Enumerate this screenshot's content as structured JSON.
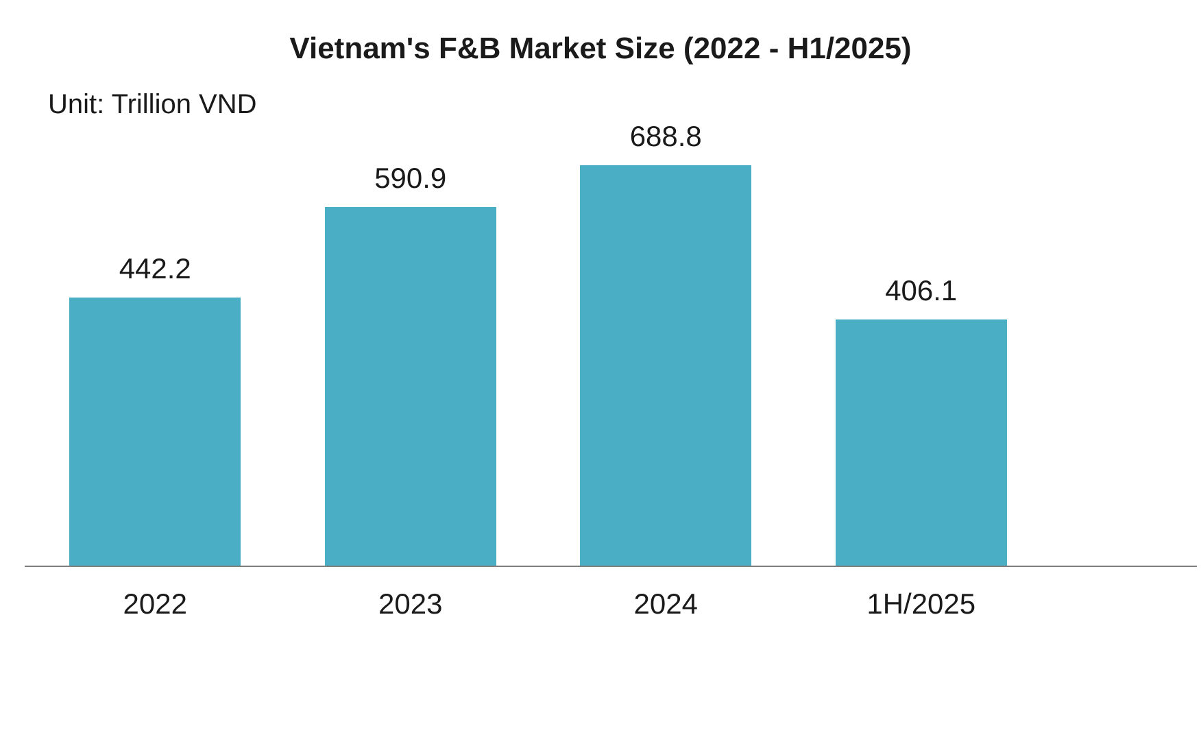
{
  "title": "Vietnam's F&B Market Size (2022 - H1/2025)",
  "unit_label": "Unit: Trillion VND",
  "colors": {
    "bar": "#4aafc5",
    "axis": "#7f7f7f",
    "text": "#1a1a1a",
    "background": "#ffffff"
  },
  "chart_data": {
    "type": "bar",
    "title": "Vietnam's F&B Market Size (2022 - H1/2025)",
    "subtitle": "Unit: Trillion VND",
    "categories": [
      "2022",
      "2023",
      "2024",
      "1H/2025"
    ],
    "values": [
      442.2,
      590.9,
      688.8,
      406.1
    ],
    "value_labels": [
      "442.2",
      "590.9",
      "688.8",
      "406.1"
    ],
    "xlabel": "",
    "ylabel": "Trillion VND",
    "ylim": [
      0,
      780
    ],
    "grid": false,
    "legend": "none",
    "bar_color": "#4aafc5",
    "data_labels": "above-bars"
  }
}
